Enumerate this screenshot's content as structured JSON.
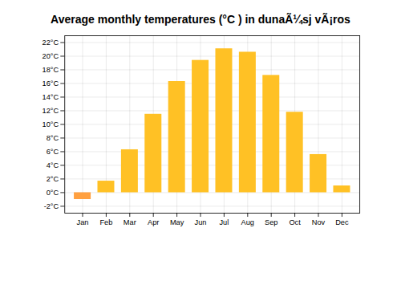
{
  "chart_data": {
    "type": "bar",
    "title": "Average monthly temperatures (°C ) in dunaÃ¼sj vÃ¡ros",
    "categories": [
      "Jan",
      "Feb",
      "Mar",
      "Apr",
      "May",
      "Jun",
      "Jul",
      "Aug",
      "Sep",
      "Oct",
      "Nov",
      "Dec"
    ],
    "values": [
      -1.0,
      1.7,
      6.3,
      11.5,
      16.3,
      19.4,
      21.1,
      20.6,
      17.2,
      11.8,
      5.6,
      1.0
    ],
    "colors": [
      "#FFA040",
      "#FFC125",
      "#FFC125",
      "#FFC125",
      "#FFC125",
      "#FFC125",
      "#FFC125",
      "#FFC125",
      "#FFC125",
      "#FFC125",
      "#FFC125",
      "#FFC125"
    ],
    "ylim": [
      -3,
      23
    ],
    "yticks": [
      {
        "value": -2,
        "label": "-2°C"
      },
      {
        "value": 0,
        "label": "0°C"
      },
      {
        "value": 2,
        "label": "2°C"
      },
      {
        "value": 4,
        "label": "4°C"
      },
      {
        "value": 6,
        "label": "6°C"
      },
      {
        "value": 8,
        "label": "8°C"
      },
      {
        "value": 10,
        "label": "10°C"
      },
      {
        "value": 12,
        "label": "12°C"
      },
      {
        "value": 14,
        "label": "14°C"
      },
      {
        "value": 16,
        "label": "16°C"
      },
      {
        "value": 18,
        "label": "18°C"
      },
      {
        "value": 20,
        "label": "20°C"
      },
      {
        "value": 22,
        "label": "22°C"
      }
    ],
    "grid": true
  }
}
